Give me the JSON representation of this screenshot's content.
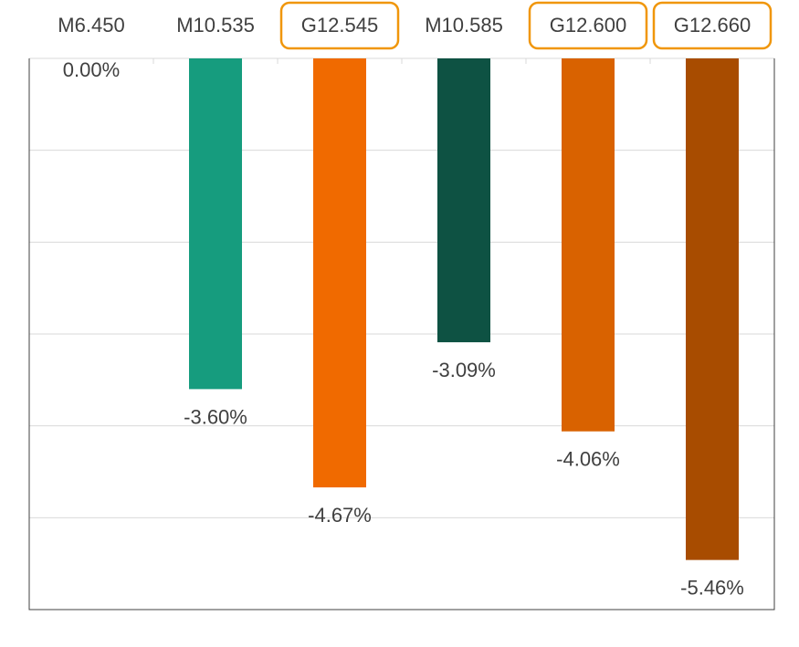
{
  "chart_data": {
    "type": "bar",
    "title": "",
    "xlabel": "",
    "ylabel": "",
    "categories": [
      "M6.450",
      "M10.535",
      "G12.545",
      "M10.585",
      "G12.600",
      "G12.660"
    ],
    "values": [
      0.0,
      -3.6,
      -4.67,
      -3.09,
      -4.06,
      -5.46
    ],
    "data_labels": [
      "0.00%",
      "-3.60%",
      "-4.67%",
      "-3.09%",
      "-4.06%",
      "-5.46%"
    ],
    "highlighted_categories": [
      false,
      false,
      true,
      false,
      true,
      true
    ],
    "colors": [
      "#169C7E",
      "#169C7E",
      "#F06A00",
      "#0E5243",
      "#D96200",
      "#A84C00"
    ],
    "highlight_color": "#F0960A",
    "ylim": [
      -6,
      0
    ],
    "y_unit": "%",
    "grid": true,
    "legend": "none"
  }
}
